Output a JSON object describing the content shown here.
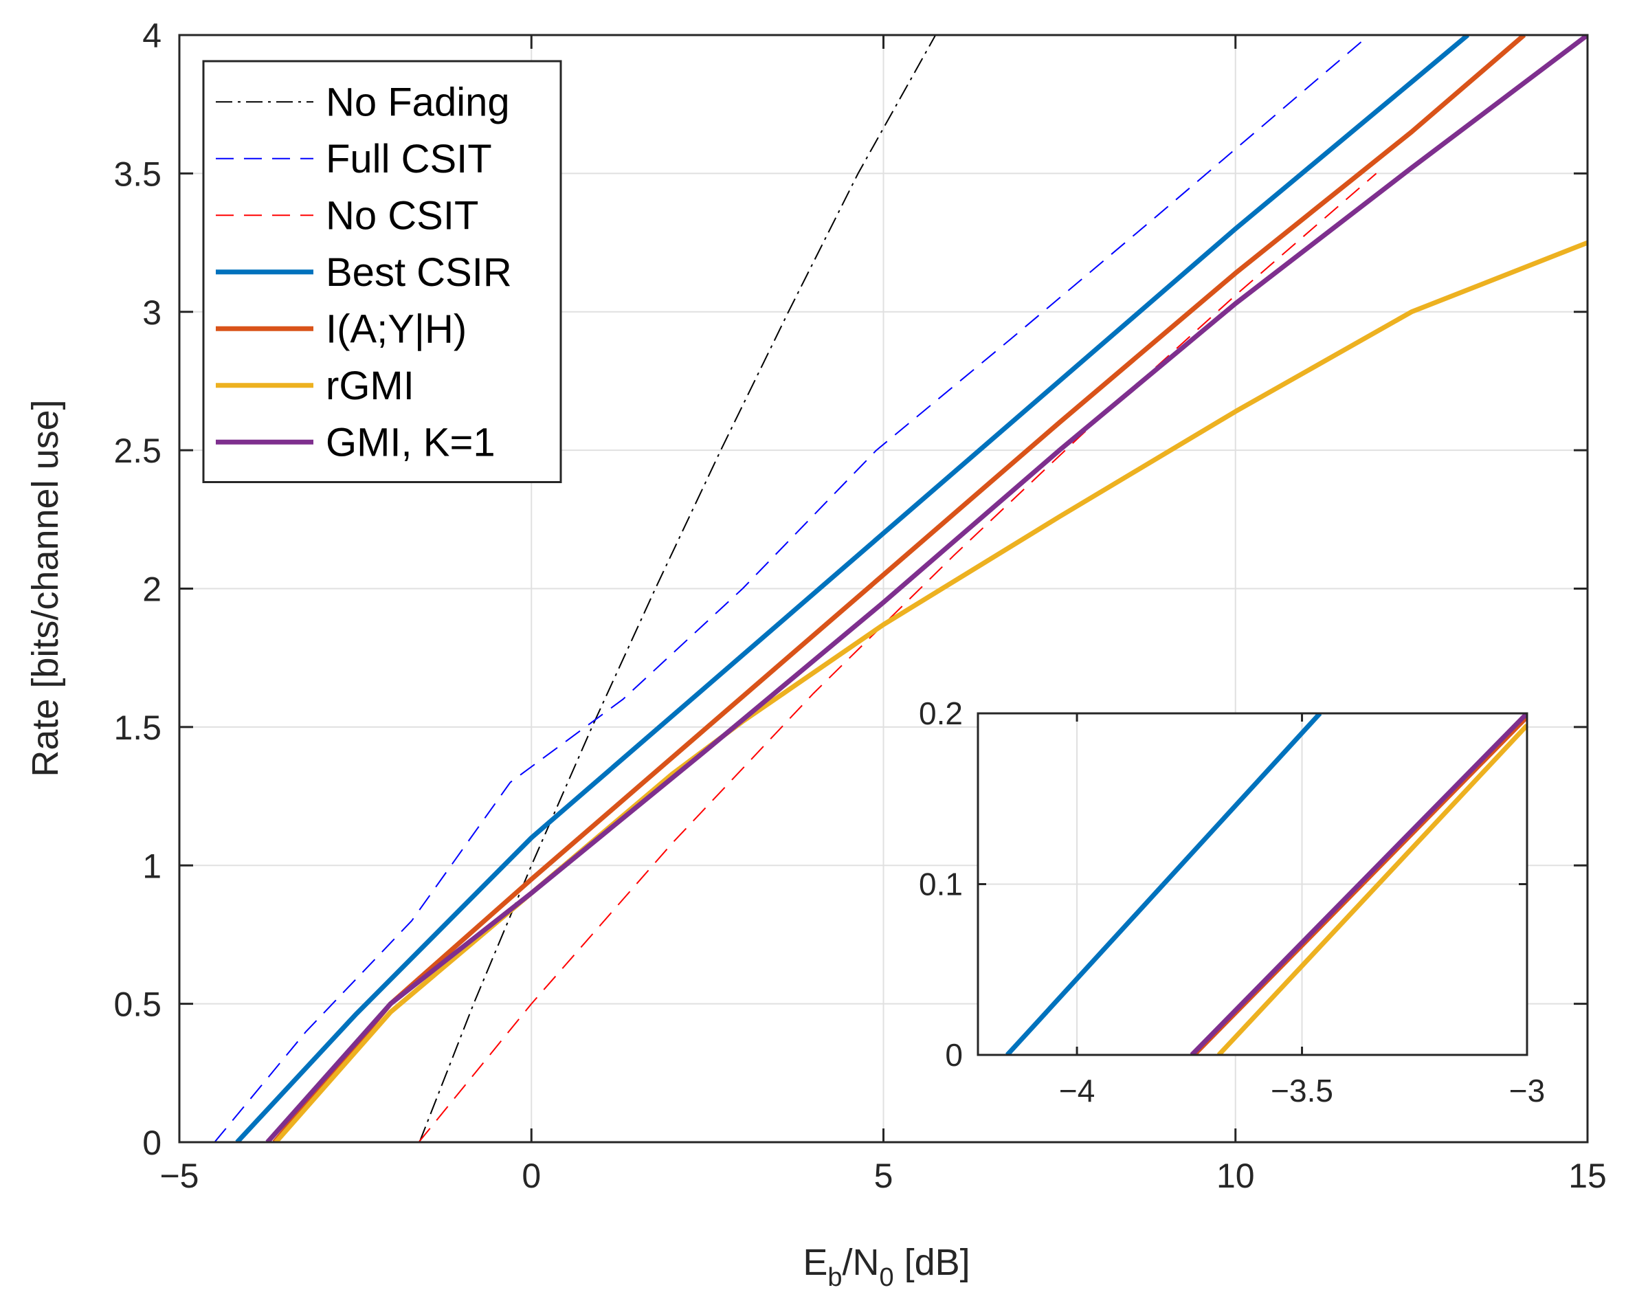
{
  "chart_data": {
    "main": {
      "type": "line",
      "xlabel": {
        "E": "E",
        "b": "b",
        "slash": "/N",
        "zero": "0",
        "unit": " [dB]"
      },
      "ylabel": "Rate [bits/channel use]",
      "xlim": [
        -5,
        15
      ],
      "ylim": [
        0,
        4
      ],
      "xticks": [
        -5,
        0,
        5,
        10,
        15
      ],
      "xtick_labels": [
        "−5",
        "0",
        "5",
        "10",
        "15"
      ],
      "yticks": [
        0,
        0.5,
        1,
        1.5,
        2,
        2.5,
        3,
        3.5,
        4
      ],
      "ytick_labels": [
        "0",
        "0.5",
        "1",
        "1.5",
        "2",
        "2.5",
        "3",
        "3.5",
        "4"
      ],
      "grid": true,
      "legend_position": "top-left",
      "series": [
        {
          "name": "No Fading",
          "color": "#000000",
          "style": "dashdot",
          "x": [
            -1.59,
            -0.82,
            0.0,
            0.86,
            1.76,
            2.69,
            3.65,
            4.64,
            5.74
          ],
          "y": [
            0,
            0.5,
            1.0,
            1.5,
            2.0,
            2.5,
            3.0,
            3.5,
            4.0
          ]
        },
        {
          "name": "Full CSIT",
          "color": "#0000ff",
          "style": "dashed",
          "x": [
            -4.5,
            -3.2,
            -1.7,
            -0.3,
            1.3,
            3.0,
            4.9,
            6.8,
            8.9,
            11.9
          ],
          "y": [
            0,
            0.4,
            0.8,
            1.3,
            1.6,
            2.0,
            2.5,
            2.9,
            3.35,
            4.0
          ]
        },
        {
          "name": "No CSIT",
          "color": "#ff0000",
          "style": "dashed",
          "x": [
            -1.6,
            0.0,
            2.0,
            4.0,
            6.0,
            8.0,
            10.0,
            12.0
          ],
          "y": [
            0,
            0.5,
            1.08,
            1.62,
            2.12,
            2.6,
            3.06,
            3.5
          ]
        },
        {
          "name": "Best CSIR",
          "color": "#0072bd",
          "style": "solid",
          "x": [
            -4.18,
            -2.5,
            0.0,
            2.5,
            5.0,
            7.5,
            10.0,
            12.5,
            13.3
          ],
          "y": [
            0,
            0.46,
            1.1,
            1.65,
            2.2,
            2.75,
            3.3,
            3.83,
            4.0
          ]
        },
        {
          "name": "I(A;Y|H)",
          "color": "#d95319",
          "style": "solid",
          "x": [
            -3.65,
            -2.0,
            0.0,
            2.5,
            5.0,
            7.5,
            10.0,
            12.5,
            14.1
          ],
          "y": [
            0,
            0.5,
            0.95,
            1.5,
            2.05,
            2.6,
            3.14,
            3.65,
            4.0
          ]
        },
        {
          "name": "rGMI",
          "color": "#edb120",
          "style": "solid",
          "x": [
            -3.63,
            -2.0,
            0.0,
            2.0,
            3.0,
            5.0,
            7.5,
            10.0,
            12.5,
            15.0
          ],
          "y": [
            0,
            0.47,
            0.9,
            1.33,
            1.52,
            1.87,
            2.26,
            2.64,
            3.0,
            3.25
          ]
        },
        {
          "name": "GMI, K=1",
          "color": "#7e2f8e",
          "style": "solid",
          "x": [
            -3.75,
            -2.0,
            0.0,
            2.5,
            5.0,
            7.5,
            10.0,
            12.5,
            15.0
          ],
          "y": [
            0,
            0.5,
            0.9,
            1.42,
            1.95,
            2.5,
            3.03,
            3.52,
            4.0
          ]
        }
      ]
    },
    "inset": {
      "type": "line",
      "xlim": [
        -4.22,
        -3.0
      ],
      "ylim": [
        0,
        0.2
      ],
      "xticks": [
        -4,
        -3.5,
        -3
      ],
      "xtick_labels": [
        "−4",
        "−3.5",
        "−3"
      ],
      "yticks": [
        0,
        0.1,
        0.2
      ],
      "ytick_labels": [
        "0",
        "0.1",
        "0.2"
      ],
      "grid": true,
      "series": [
        {
          "name": "Best CSIR",
          "color": "#0072bd",
          "x": [
            -4.155,
            -3.46
          ],
          "y": [
            0,
            0.2
          ]
        },
        {
          "name": "I(A;Y|H)",
          "color": "#d95319",
          "x": [
            -3.74,
            -3.0
          ],
          "y": [
            0,
            0.198
          ]
        },
        {
          "name": "rGMI",
          "color": "#edb120",
          "x": [
            -3.685,
            -3.0
          ],
          "y": [
            0,
            0.193
          ]
        },
        {
          "name": "GMI, K=1",
          "color": "#7e2f8e",
          "x": [
            -3.745,
            -3.0
          ],
          "y": [
            0,
            0.2
          ]
        }
      ]
    }
  }
}
